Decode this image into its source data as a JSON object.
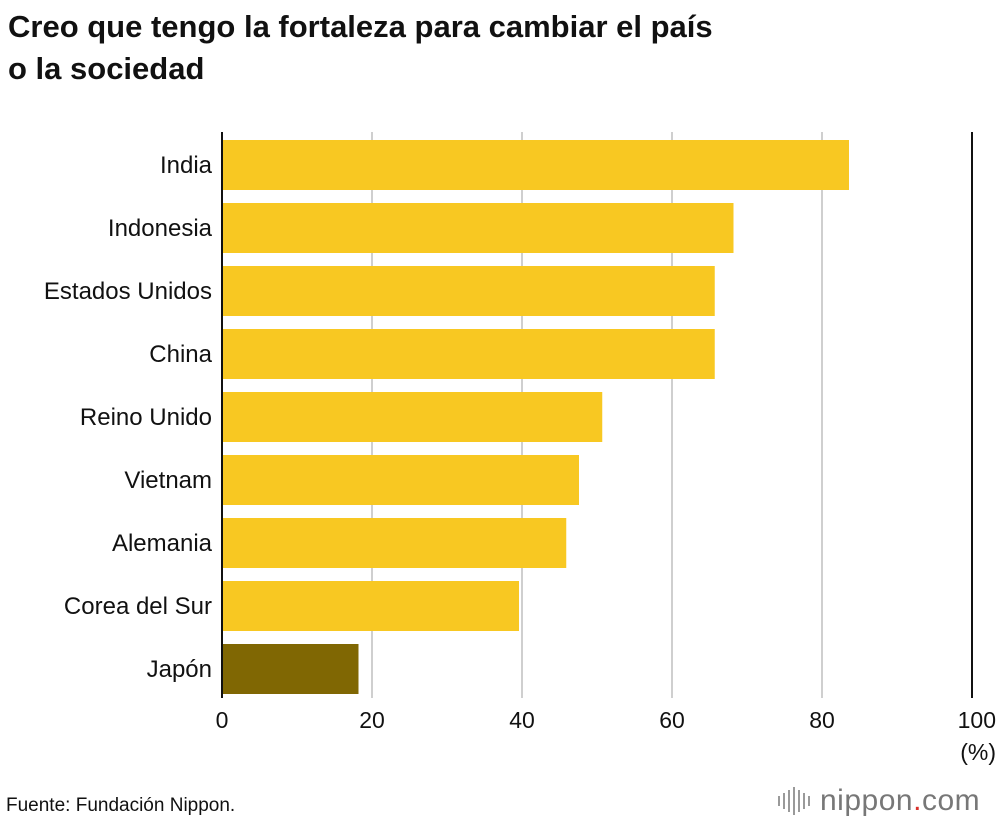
{
  "header": {
    "title_line1": "Creo que tengo la fortaleza para cambiar el país",
    "title_line2": "o la sociedad"
  },
  "footer": {
    "source": "Fuente: Fundación Nippon.",
    "brand_main": "nippon",
    "brand_dot": ".",
    "brand_suffix": "com"
  },
  "chart_data": {
    "type": "bar",
    "orientation": "horizontal",
    "title": "Creo que tengo la fortaleza para cambiar el país o la sociedad",
    "xlabel": "(%)",
    "ylabel": "",
    "categories": [
      "India",
      "Indonesia",
      "Estados Unidos",
      "China",
      "Reino Unido",
      "Vietnam",
      "Alemania",
      "Corea del Sur",
      "Japón"
    ],
    "values": [
      83.6,
      68.2,
      65.7,
      65.7,
      50.7,
      47.6,
      45.9,
      39.6,
      18.2
    ],
    "xlim": [
      0,
      100
    ],
    "xticks": [
      "0",
      "20",
      "40",
      "60",
      "80",
      "100"
    ],
    "grid": true,
    "colors": {
      "default": "#f8c822",
      "highlight": "#806703",
      "grid": "#cfcfcf",
      "axis": "#111111"
    },
    "highlight_category": "Japón"
  }
}
